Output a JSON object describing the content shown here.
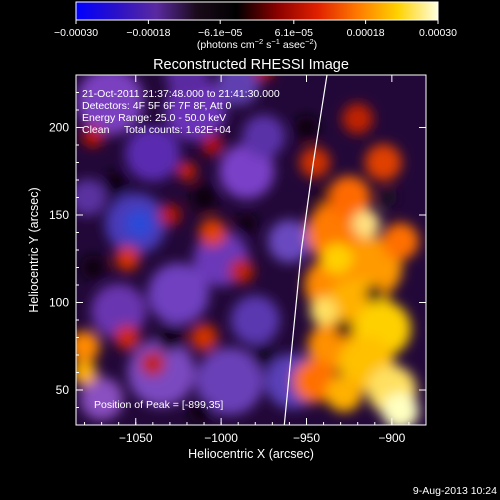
{
  "chart_data": {
    "type": "heatmap",
    "title": "Reconstructed RHESSI Image",
    "xlabel": "Heliocentric X (arcsec)",
    "ylabel": "Heliocentric Y (arcsec)",
    "xlim": [
      -1085,
      -880
    ],
    "ylim": [
      30,
      230
    ],
    "x_ticks": [
      -1050,
      -1000,
      -950,
      -900
    ],
    "x_tick_labels": [
      "−1050",
      "−1000",
      "−950",
      "−900"
    ],
    "y_ticks": [
      50,
      100,
      150,
      200
    ],
    "y_tick_labels": [
      "50",
      "100",
      "150",
      "200"
    ],
    "colorbar": {
      "range": [
        -0.0003,
        0.0003
      ],
      "ticks": [
        -0.0003,
        -0.00018,
        -6.1e-05,
        6.1e-05,
        0.00018,
        0.0003
      ],
      "tick_labels": [
        "−0.00030",
        "−0.00018",
        "−6.1e−05",
        "6.1e−05",
        "0.00018",
        "0.00030"
      ],
      "units_prefix": "(photons cm",
      "units_exp1": "−2",
      "units_mid": " s",
      "units_exp2": "−1",
      "units_mid2": " asec",
      "units_exp3": "−2",
      "units_suffix": ")",
      "colormap": [
        "#0000ff",
        "#2a10c8",
        "#5a2aa0",
        "#1a0a1a",
        "#000000",
        "#8a0000",
        "#e02000",
        "#ff7a00",
        "#ffd200",
        "#ffffe0"
      ]
    },
    "annotations": [
      "21-Oct-2011 21:37:48.000 to 21:41:30.000",
      "Detectors: 4F 5F 6F 7F 8F, Att 0",
      "Energy Range: 25.0 - 50.0 keV",
      "Clean     Total counts: 1.62E+04"
    ],
    "peak_label": "Position of Peak = [-899,35]",
    "peak_position": [
      -899,
      35
    ],
    "limb_curve": [
      [
        -963,
        30
      ],
      [
        -958,
        80
      ],
      [
        -953,
        130
      ],
      [
        -946,
        180
      ],
      [
        -938,
        230
      ]
    ],
    "grid": false,
    "legend": "none"
  },
  "footer": {
    "date": "9-Aug-2013 10:24"
  }
}
